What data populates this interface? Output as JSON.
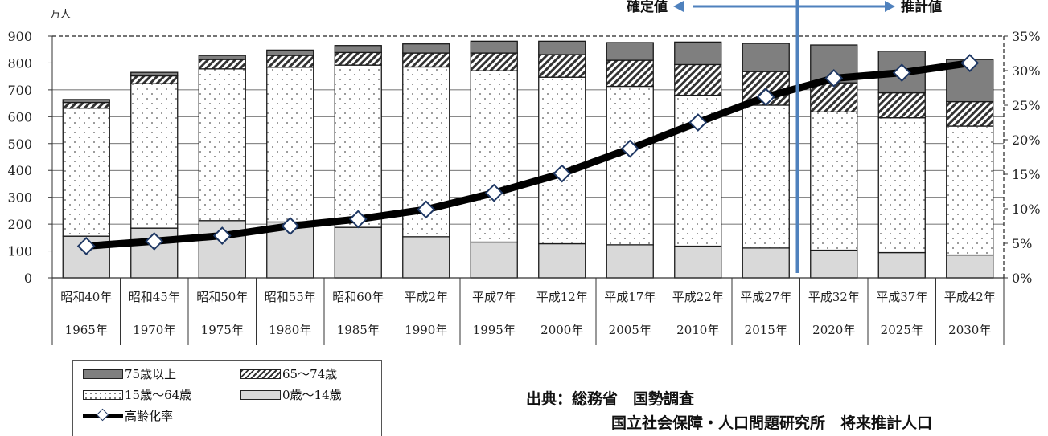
{
  "chart_data": {
    "type": "bar",
    "stacked": true,
    "y_unit": "万人",
    "ylim": [
      0,
      900
    ],
    "y_ticks": [
      "0",
      "100",
      "200",
      "300",
      "400",
      "500",
      "600",
      "700",
      "800",
      "900"
    ],
    "y2lim": [
      0,
      35
    ],
    "y2_ticks": [
      "0%",
      "5%",
      "10%",
      "15%",
      "20%",
      "25%",
      "30%",
      "35%"
    ],
    "categories": [
      {
        "era": "昭和40年",
        "year": "1965年"
      },
      {
        "era": "昭和45年",
        "year": "1970年"
      },
      {
        "era": "昭和50年",
        "year": "1975年"
      },
      {
        "era": "昭和55年",
        "year": "1980年"
      },
      {
        "era": "昭和60年",
        "year": "1985年"
      },
      {
        "era": "平成2年",
        "year": "1990年"
      },
      {
        "era": "平成7年",
        "year": "1995年"
      },
      {
        "era": "平成12年",
        "year": "2000年"
      },
      {
        "era": "平成17年",
        "year": "2005年"
      },
      {
        "era": "平成22年",
        "year": "2010年"
      },
      {
        "era": "平成27年",
        "year": "2015年"
      },
      {
        "era": "平成32年",
        "year": "2020年"
      },
      {
        "era": "平成37年",
        "year": "2025年"
      },
      {
        "era": "平成42年",
        "year": "2030年"
      }
    ],
    "series": [
      {
        "name": "0歳～14歳",
        "color": "#d9d9d9",
        "pattern": "solid-light",
        "values": [
          155,
          185,
          213,
          208,
          188,
          153,
          133,
          127,
          123,
          118,
          111,
          103,
          94,
          85
        ]
      },
      {
        "name": "15歳～64歳",
        "color": "#ffffff",
        "pattern": "dots",
        "values": [
          477,
          538,
          565,
          576,
          604,
          632,
          638,
          620,
          590,
          562,
          532,
          515,
          502,
          480
        ]
      },
      {
        "name": "65～74歳",
        "color": "#ffffff",
        "pattern": "hatch",
        "values": [
          21,
          29,
          35,
          44,
          47,
          52,
          66,
          84,
          97,
          114,
          125,
          108,
          93,
          91
        ]
      },
      {
        "name": "75歳以上",
        "color": "#7f7f7f",
        "pattern": "solid-dark",
        "values": [
          11,
          13,
          15,
          20,
          26,
          34,
          44,
          50,
          66,
          84,
          105,
          141,
          155,
          157
        ]
      }
    ],
    "line_series": {
      "name": "高齢化率",
      "axis": "right",
      "unit": "%",
      "values": [
        4.6,
        5.3,
        6.1,
        7.5,
        8.5,
        9.9,
        12.3,
        15.1,
        18.7,
        22.5,
        26.2,
        28.9,
        29.7,
        31.1
      ]
    },
    "divider_after_index": 10,
    "divider_labels": {
      "left": "確定値",
      "right": "推計値"
    },
    "legend_position": "bottom-left"
  },
  "source": {
    "line1": "出典：総務省　国勢調査",
    "line2": "国立社会保障・人口問題研究所　将来推計人口"
  }
}
